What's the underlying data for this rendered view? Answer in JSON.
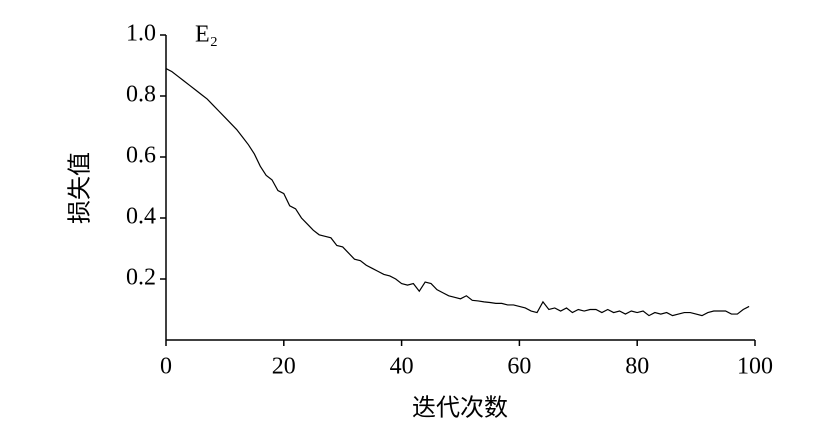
{
  "chart_data": {
    "type": "line",
    "annotation": "E₂",
    "xlabel": "迭代次数",
    "ylabel": "损失值",
    "x": [
      0,
      1,
      2,
      3,
      4,
      5,
      6,
      7,
      8,
      9,
      10,
      11,
      12,
      13,
      14,
      15,
      16,
      17,
      18,
      19,
      20,
      21,
      22,
      23,
      24,
      25,
      26,
      27,
      28,
      29,
      30,
      31,
      32,
      33,
      34,
      35,
      36,
      37,
      38,
      39,
      40,
      41,
      42,
      43,
      44,
      45,
      46,
      47,
      48,
      49,
      50,
      51,
      52,
      53,
      54,
      55,
      56,
      57,
      58,
      59,
      60,
      61,
      62,
      63,
      64,
      65,
      66,
      67,
      68,
      69,
      70,
      71,
      72,
      73,
      74,
      75,
      76,
      77,
      78,
      79,
      80,
      81,
      82,
      83,
      84,
      85,
      86,
      87,
      88,
      89,
      90,
      91,
      92,
      93,
      94,
      95,
      96,
      97,
      98,
      99
    ],
    "series": [
      {
        "name": "E₂",
        "color": "#000000",
        "values": [
          0.89,
          0.88,
          0.865,
          0.85,
          0.835,
          0.82,
          0.805,
          0.79,
          0.77,
          0.75,
          0.73,
          0.71,
          0.69,
          0.665,
          0.64,
          0.61,
          0.57,
          0.54,
          0.525,
          0.49,
          0.48,
          0.44,
          0.43,
          0.4,
          0.38,
          0.36,
          0.345,
          0.34,
          0.335,
          0.31,
          0.305,
          0.285,
          0.265,
          0.26,
          0.245,
          0.235,
          0.225,
          0.215,
          0.21,
          0.2,
          0.185,
          0.18,
          0.185,
          0.16,
          0.19,
          0.185,
          0.165,
          0.155,
          0.145,
          0.14,
          0.135,
          0.145,
          0.13,
          0.128,
          0.125,
          0.123,
          0.12,
          0.12,
          0.115,
          0.115,
          0.11,
          0.105,
          0.095,
          0.09,
          0.125,
          0.1,
          0.105,
          0.095,
          0.105,
          0.09,
          0.1,
          0.095,
          0.1,
          0.1,
          0.09,
          0.1,
          0.09,
          0.095,
          0.085,
          0.095,
          0.09,
          0.095,
          0.08,
          0.09,
          0.085,
          0.09,
          0.08,
          0.085,
          0.09,
          0.09,
          0.085,
          0.08,
          0.09,
          0.095,
          0.095,
          0.095,
          0.085,
          0.085,
          0.1,
          0.11
        ]
      }
    ],
    "xlim": [
      0,
      100
    ],
    "xticks": [
      0,
      20,
      40,
      60,
      80,
      100
    ],
    "ylim": [
      0,
      1
    ],
    "yticks": [
      0.2,
      0.4,
      0.6,
      0.8,
      {
        "value": 1,
        "label": "1.0"
      }
    ]
  }
}
